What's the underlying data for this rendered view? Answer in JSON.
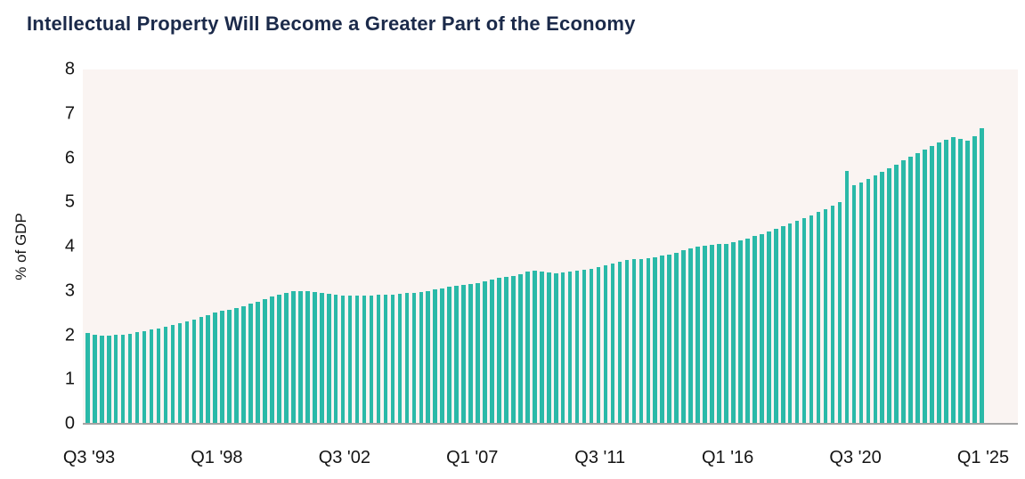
{
  "page": {
    "title": "Intellectual Property Will Become a Greater Part of the Economy"
  },
  "colors": {
    "bar": "#2ab9a8",
    "plot_background": "#faf4f2",
    "title_text": "#1b2a4a",
    "tick_text": "#141414",
    "axis_line": "#a3a3a3"
  },
  "chart_data": {
    "type": "bar",
    "title": "Intellectual Property Will Become a Greater Part of the Economy",
    "xlabel": "",
    "ylabel": "% of GDP",
    "ylim": [
      0,
      8
    ],
    "y_ticks": [
      0,
      1,
      2,
      3,
      4,
      5,
      6,
      7,
      8
    ],
    "grid": false,
    "legend": false,
    "x_frequency": "quarterly",
    "x_start": "Q3 1993",
    "x_end": "Q1 2025",
    "x_tick_labels": [
      "Q3 '93",
      "Q1 '98",
      "Q3 '02",
      "Q1 '07",
      "Q3 '11",
      "Q1 '16",
      "Q3 '20",
      "Q1 '25"
    ],
    "x_tick_indices": [
      0,
      18,
      36,
      54,
      72,
      90,
      108,
      126
    ],
    "values": [
      2.05,
      2.02,
      2.0,
      2.0,
      2.01,
      2.02,
      2.04,
      2.07,
      2.1,
      2.13,
      2.16,
      2.2,
      2.24,
      2.28,
      2.32,
      2.36,
      2.41,
      2.46,
      2.51,
      2.55,
      2.58,
      2.62,
      2.66,
      2.71,
      2.76,
      2.81,
      2.87,
      2.92,
      2.96,
      2.99,
      3.0,
      2.99,
      2.97,
      2.95,
      2.93,
      2.91,
      2.9,
      2.89,
      2.89,
      2.9,
      2.9,
      2.91,
      2.91,
      2.92,
      2.93,
      2.95,
      2.96,
      2.98,
      3.0,
      3.03,
      3.06,
      3.09,
      3.11,
      3.13,
      3.15,
      3.18,
      3.22,
      3.26,
      3.29,
      3.31,
      3.34,
      3.38,
      3.43,
      3.46,
      3.44,
      3.41,
      3.4,
      3.41,
      3.43,
      3.45,
      3.47,
      3.5,
      3.54,
      3.58,
      3.62,
      3.66,
      3.69,
      3.71,
      3.72,
      3.74,
      3.76,
      3.79,
      3.82,
      3.86,
      3.91,
      3.96,
      4.0,
      4.03,
      4.05,
      4.06,
      4.07,
      4.1,
      4.14,
      4.19,
      4.24,
      4.29,
      4.34,
      4.4,
      4.46,
      4.52,
      4.58,
      4.64,
      4.71,
      4.78,
      4.85,
      4.92,
      5.0,
      5.7,
      5.38,
      5.45,
      5.52,
      5.6,
      5.68,
      5.76,
      5.85,
      5.94,
      6.03,
      6.12,
      6.2,
      6.28,
      6.35,
      6.42,
      6.47,
      6.44,
      6.4,
      6.5,
      6.68
    ]
  }
}
